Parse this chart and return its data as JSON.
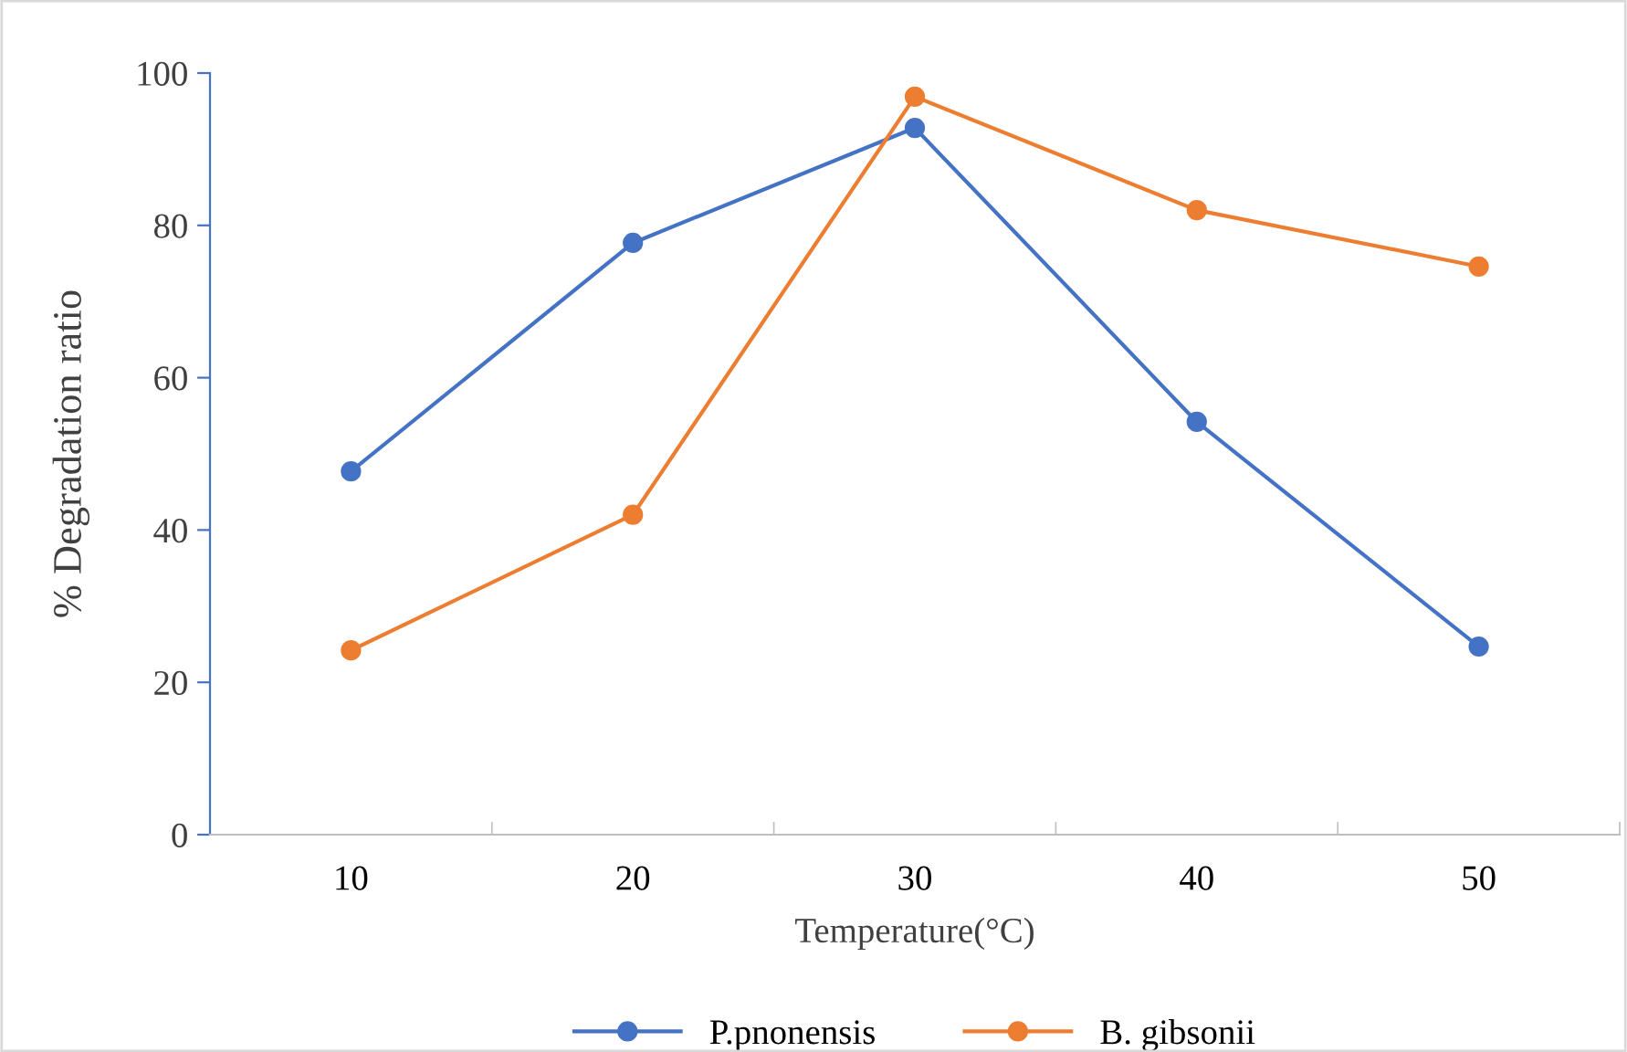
{
  "chart_data": {
    "type": "line",
    "xlabel": "Temperature(°C)",
    "ylabel": "% Degradation ratio",
    "categories": [
      "10",
      "20",
      "30",
      "40",
      "50"
    ],
    "series": [
      {
        "name": "P.pnonensis",
        "color": "#4472c4",
        "values": [
          47.7,
          77.7,
          92.8,
          54.2,
          24.7
        ]
      },
      {
        "name": "B. gibsonii",
        "color": "#ed7d31",
        "values": [
          24.2,
          42.0,
          96.9,
          82.0,
          74.6
        ]
      }
    ],
    "ylim": [
      0,
      100
    ],
    "yticks": [
      0,
      20,
      40,
      60,
      80,
      100
    ],
    "grid": false,
    "legend": "bottom",
    "marker": "circle",
    "line_style": "solid"
  }
}
